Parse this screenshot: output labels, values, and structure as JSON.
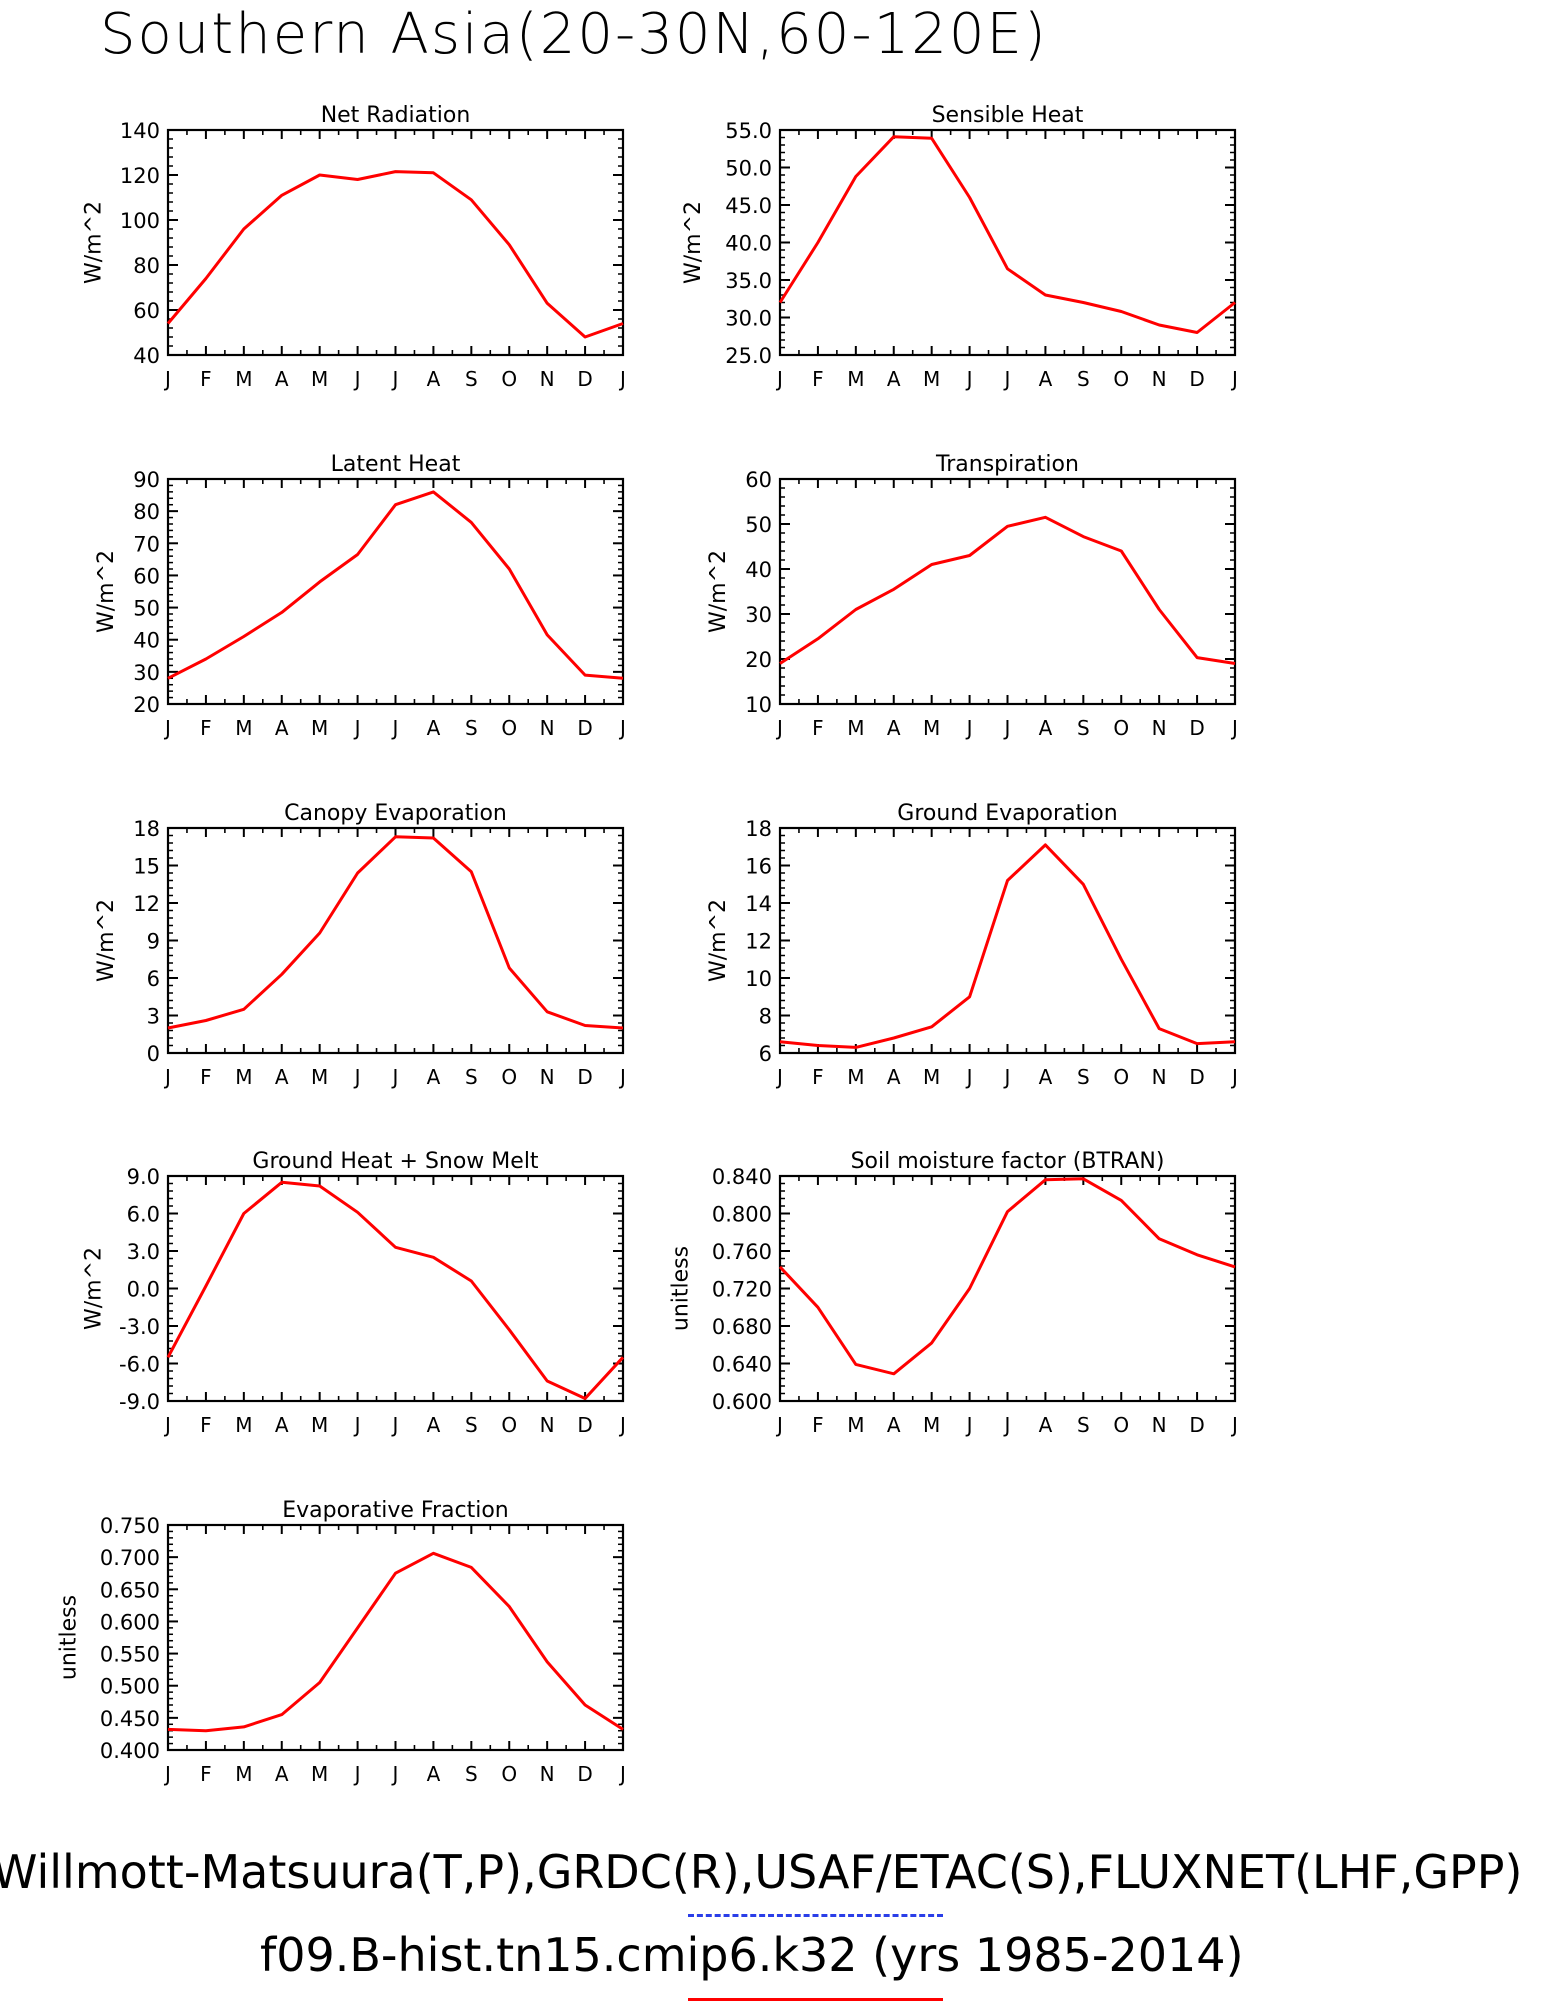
{
  "title": "Southern Asia(20-30N,60-120E)",
  "footer": {
    "reference": "Willmott-Matsuura(T,P),GRDC(R),USAF/ETAC(S),FLUXNET(LHF,GPP)",
    "case": "f09.B-hist.tn15.cmip6.k32 (yrs 1985-2014)"
  },
  "colors": {
    "case_line": "#ff0000",
    "reference_key": "#2a3ee8",
    "axes": "#000000"
  },
  "chart_data": [
    {
      "type": "line",
      "title": "Net Radiation",
      "ylabel": "W/m^2",
      "x": [
        "J",
        "F",
        "M",
        "A",
        "M",
        "J",
        "J",
        "A",
        "S",
        "O",
        "N",
        "D",
        "J"
      ],
      "ylim": [
        40,
        140
      ],
      "yticks": [
        "40",
        "60",
        "80",
        "100",
        "120",
        "140"
      ],
      "series": [
        {
          "values": [
            54,
            74,
            96,
            111,
            120,
            118,
            121.5,
            121,
            109,
            89,
            63,
            48,
            54
          ]
        }
      ]
    },
    {
      "type": "line",
      "title": "Sensible Heat",
      "ylabel": "W/m^2",
      "x": [
        "J",
        "F",
        "M",
        "A",
        "M",
        "J",
        "J",
        "A",
        "S",
        "O",
        "N",
        "D",
        "J"
      ],
      "ylim": [
        25,
        55
      ],
      "yticks": [
        "25.0",
        "30.0",
        "35.0",
        "40.0",
        "45.0",
        "50.0",
        "55.0"
      ],
      "series": [
        {
          "values": [
            32,
            40,
            48.8,
            54.1,
            53.9,
            46,
            36.5,
            33,
            32,
            30.8,
            29,
            28,
            32
          ]
        }
      ]
    },
    {
      "type": "line",
      "title": "Latent Heat",
      "ylabel": "W/m^2",
      "x": [
        "J",
        "F",
        "M",
        "A",
        "M",
        "J",
        "J",
        "A",
        "S",
        "O",
        "N",
        "D",
        "J"
      ],
      "ylim": [
        20,
        90
      ],
      "yticks": [
        "20",
        "30",
        "40",
        "50",
        "60",
        "70",
        "80",
        "90"
      ],
      "series": [
        {
          "values": [
            28,
            34,
            41,
            48.5,
            58,
            66.5,
            82,
            86,
            76.5,
            62,
            41.5,
            29,
            28
          ]
        }
      ]
    },
    {
      "type": "line",
      "title": "Transpiration",
      "ylabel": "W/m^2",
      "x": [
        "J",
        "F",
        "M",
        "A",
        "M",
        "J",
        "J",
        "A",
        "S",
        "O",
        "N",
        "D",
        "J"
      ],
      "ylim": [
        10,
        60
      ],
      "yticks": [
        "10",
        "20",
        "30",
        "40",
        "50",
        "60"
      ],
      "series": [
        {
          "values": [
            19,
            24.5,
            31,
            35.5,
            41,
            43,
            49.5,
            51.5,
            47.2,
            44,
            31,
            20.3,
            19
          ]
        }
      ]
    },
    {
      "type": "line",
      "title": "Canopy Evaporation",
      "ylabel": "W/m^2",
      "x": [
        "J",
        "F",
        "M",
        "A",
        "M",
        "J",
        "J",
        "A",
        "S",
        "O",
        "N",
        "D",
        "J"
      ],
      "ylim": [
        0,
        18
      ],
      "yticks": [
        "0",
        "3",
        "6",
        "9",
        "12",
        "15",
        "18"
      ],
      "series": [
        {
          "values": [
            2,
            2.6,
            3.5,
            6.3,
            9.6,
            14.4,
            17.3,
            17.2,
            14.5,
            6.8,
            3.3,
            2.2,
            2
          ]
        }
      ]
    },
    {
      "type": "line",
      "title": "Ground Evaporation",
      "ylabel": "W/m^2",
      "x": [
        "J",
        "F",
        "M",
        "A",
        "M",
        "J",
        "J",
        "A",
        "S",
        "O",
        "N",
        "D",
        "J"
      ],
      "ylim": [
        6,
        18
      ],
      "yticks": [
        "6",
        "8",
        "10",
        "12",
        "14",
        "16",
        "18"
      ],
      "series": [
        {
          "values": [
            6.6,
            6.4,
            6.3,
            6.8,
            7.4,
            9,
            15.2,
            17.1,
            15,
            11,
            7.3,
            6.5,
            6.6
          ]
        }
      ]
    },
    {
      "type": "line",
      "title": "Ground Heat + Snow Melt",
      "ylabel": "W/m^2",
      "x": [
        "J",
        "F",
        "M",
        "A",
        "M",
        "J",
        "J",
        "A",
        "S",
        "O",
        "N",
        "D",
        "J"
      ],
      "ylim": [
        -9,
        9
      ],
      "yticks": [
        "-9.0",
        "-6.0",
        "-3.0",
        "0.0",
        "3.0",
        "6.0",
        "9.0"
      ],
      "series": [
        {
          "values": [
            -5.5,
            0.2,
            6,
            8.5,
            8.2,
            6.1,
            3.3,
            2.5,
            0.6,
            -3.3,
            -7.4,
            -8.8,
            -5.5
          ]
        }
      ]
    },
    {
      "type": "line",
      "title": "Soil moisture factor (BTRAN)",
      "ylabel": "unitless",
      "x": [
        "J",
        "F",
        "M",
        "A",
        "M",
        "J",
        "J",
        "A",
        "S",
        "O",
        "N",
        "D",
        "J"
      ],
      "ylim": [
        0.6,
        0.84
      ],
      "yticks": [
        "0.600",
        "0.640",
        "0.680",
        "0.720",
        "0.760",
        "0.800",
        "0.840"
      ],
      "series": [
        {
          "values": [
            0.743,
            0.7,
            0.639,
            0.629,
            0.662,
            0.72,
            0.802,
            0.836,
            0.837,
            0.814,
            0.773,
            0.756,
            0.743
          ]
        }
      ]
    },
    {
      "type": "line",
      "title": "Evaporative Fraction",
      "ylabel": "unitless",
      "x": [
        "J",
        "F",
        "M",
        "A",
        "M",
        "J",
        "J",
        "A",
        "S",
        "O",
        "N",
        "D",
        "J"
      ],
      "ylim": [
        0.4,
        0.75
      ],
      "yticks": [
        "0.400",
        "0.450",
        "0.500",
        "0.550",
        "0.600",
        "0.650",
        "0.700",
        "0.750"
      ],
      "series": [
        {
          "values": [
            0.432,
            0.43,
            0.436,
            0.455,
            0.505,
            0.59,
            0.675,
            0.706,
            0.684,
            0.623,
            0.537,
            0.47,
            0.432
          ]
        }
      ]
    }
  ]
}
